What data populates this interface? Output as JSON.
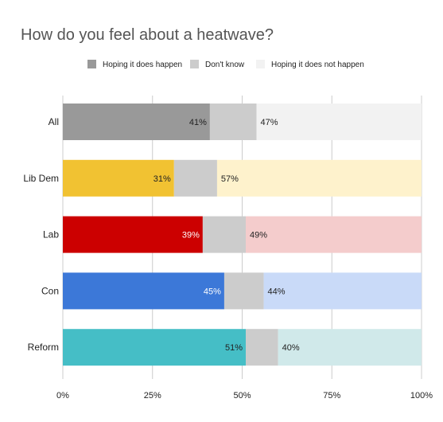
{
  "chart_data": {
    "type": "bar",
    "orientation": "horizontal",
    "stacked": true,
    "title": "How do you feel about a heatwave?",
    "xlabel": "",
    "ylabel": "",
    "xlim": [
      0,
      100
    ],
    "x_ticks": [
      "0%",
      "25%",
      "50%",
      "75%",
      "100%"
    ],
    "grid": true,
    "legend_position": "top",
    "categories": [
      "All",
      "Lib Dem",
      "Lab",
      "Con",
      "Reform"
    ],
    "series": [
      {
        "name": "Hoping it does happen",
        "values": [
          41,
          31,
          39,
          45,
          51
        ],
        "labels": [
          "41%",
          "31%",
          "39%",
          "45%",
          "51%"
        ]
      },
      {
        "name": "Don't know",
        "values": [
          13,
          12,
          12,
          11,
          9
        ]
      },
      {
        "name": "Hoping it does not happen",
        "values": [
          47,
          57,
          49,
          44,
          40
        ],
        "labels": [
          "47%",
          "57%",
          "49%",
          "44%",
          "40%"
        ]
      }
    ],
    "legend_colors": [
      "#999999",
      "#cccccc",
      "#f2f2f2"
    ],
    "row_colors": {
      "happen": [
        "#999999",
        "#f1c232",
        "#cc0000",
        "#3c78d8",
        "#45bec6"
      ],
      "dont_know": [
        "#cccccc",
        "#cccccc",
        "#cccccc",
        "#cccccc",
        "#cccccc"
      ],
      "not_happen": [
        "#f2f2f2",
        "#fef2cc",
        "#f4cccc",
        "#c9daf8",
        "#d0e9ea"
      ]
    },
    "happen_label_colors": [
      "#222222",
      "#222222",
      "#ffffff",
      "#ffffff",
      "#222222"
    ]
  }
}
